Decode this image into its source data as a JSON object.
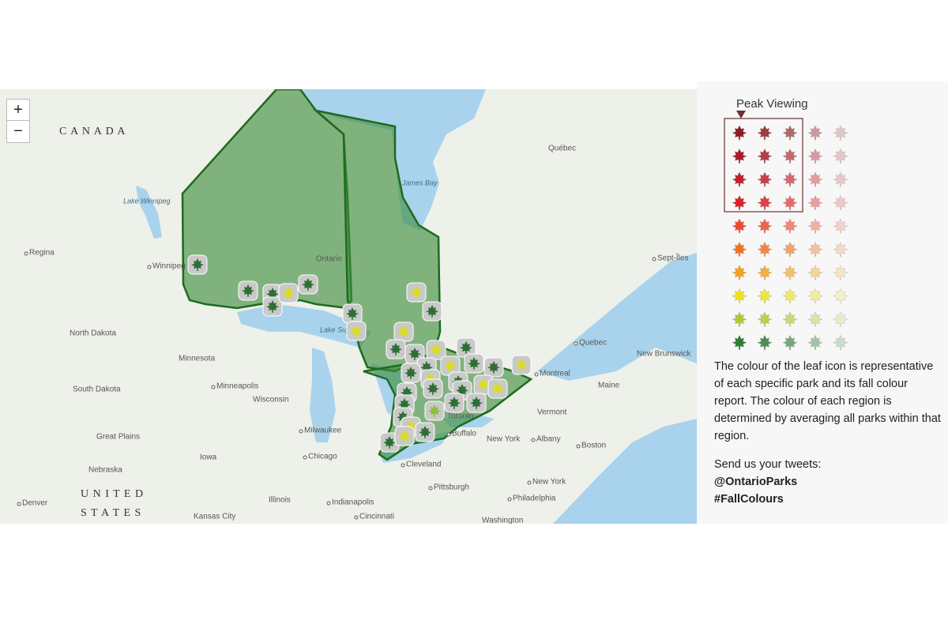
{
  "zoom": {
    "in": "+",
    "out": "−"
  },
  "map_labels": [
    "C A N A D A",
    "Québec",
    "James Bay",
    "Lake Winnipeg",
    "Regina",
    "Winnipeg",
    "Ontario",
    "Sept-Îles",
    "North Dakota",
    "Lake Superior",
    "Quebec",
    "New Brunswick",
    "Minnesota",
    "Montreal",
    "South Dakota",
    "Minneapolis",
    "Wisconsin",
    "Maine",
    "Vermont",
    "Great Plains",
    "Milwaukee",
    "Toronto",
    "Buffalo",
    "New York",
    "Albany",
    "Boston",
    "Chicago",
    "Iowa",
    "Cleveland",
    "Nebraska",
    "Pittsburgh",
    "New York",
    "U N I T E D",
    "S T A T E S",
    "Denver",
    "Illinois",
    "Indianapolis",
    "Philadelphia",
    "Kansas City",
    "Cincinnati",
    "Washington"
  ],
  "legend": {
    "title": "Peak Viewing",
    "colors": [
      "#8e1b1e",
      "#a81c26",
      "#c01f2c",
      "#dc1f28",
      "#ec4a2c",
      "#ef7222",
      "#f4a11f",
      "#eee021",
      "#b5c734",
      "#2f7d33"
    ]
  },
  "description": "The colour of the leaf icon is representative of each specific park and its fall colour report. The colour of each region is determined by averaging all parks within that region.",
  "tweets": {
    "prompt": "Send us your tweets:",
    "handle": "@OntarioParks",
    "hashtag": "#FallColours"
  }
}
